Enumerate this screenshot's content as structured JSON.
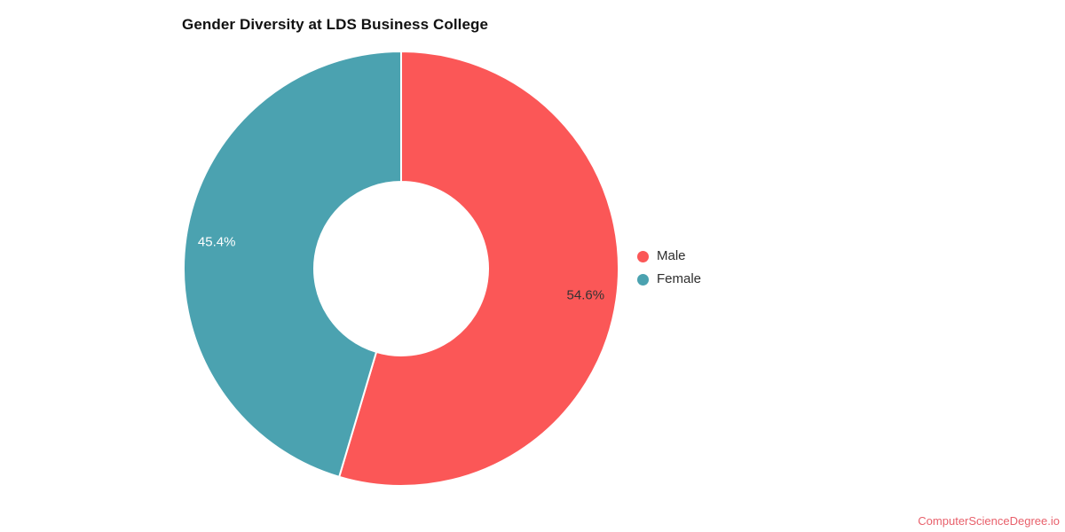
{
  "page": {
    "watermark": "ComputerScienceDegree.io",
    "watermark_color": "#e8606b",
    "background": "#ffffff"
  },
  "chart_data": {
    "type": "pie",
    "subtype": "donut",
    "title": "Gender Diversity at LDS Business College",
    "categories": [
      "Male",
      "Female"
    ],
    "values": [
      54.6,
      45.4
    ],
    "data_labels": [
      "54.6%",
      "45.4%"
    ],
    "colors": [
      "#fb5757",
      "#4ba2b0"
    ],
    "data_label_colors": [
      "#333333",
      "#ffffff"
    ],
    "start_angle_deg": 0,
    "direction": "clockwise",
    "legend_position": "right",
    "legend": [
      {
        "label": "Male",
        "color": "#fb5757"
      },
      {
        "label": "Female",
        "color": "#4ba2b0"
      }
    ]
  }
}
